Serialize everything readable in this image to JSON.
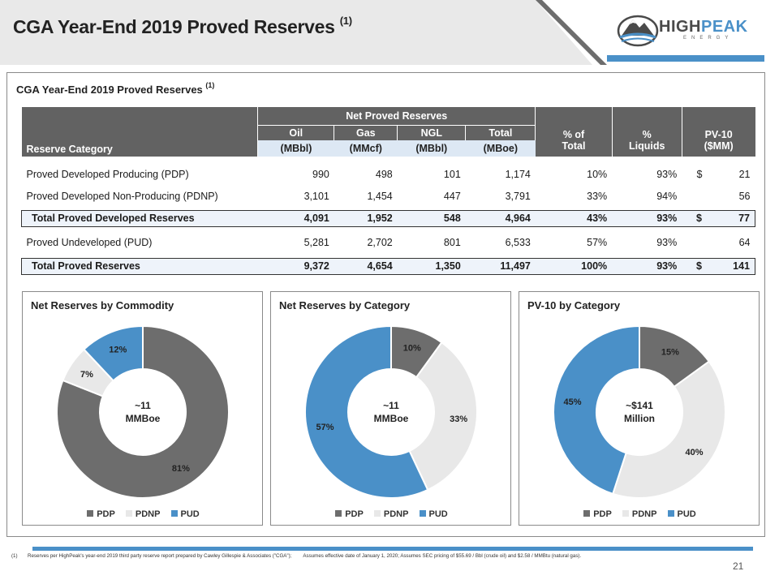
{
  "header": {
    "title": "CGA Year-End 2019 Proved Reserves",
    "title_sup": "(1)",
    "logo_name": "HIGHPEAK",
    "logo_prefix": "HIGH",
    "logo_suffix": "PEAK",
    "logo_sub": "ENERGY",
    "colors": {
      "band": "#e9e9e9",
      "accent": "#4a90c8",
      "dark_grey": "#626262"
    }
  },
  "section": {
    "title": "CGA Year-End 2019 Proved Reserves",
    "title_sup": "(1)"
  },
  "table": {
    "group_header": "Net Proved Reserves",
    "reserve_category": "Reserve Category",
    "cols": [
      {
        "top": "Oil",
        "bottom": "(MBbl)"
      },
      {
        "top": "Gas",
        "bottom": "(MMcf)"
      },
      {
        "top": "NGL",
        "bottom": "(MBbl)"
      },
      {
        "top": "Total",
        "bottom": "(MBoe)"
      },
      {
        "top": "% of",
        "bottom": "Total"
      },
      {
        "top": "%",
        "bottom": "Liquids"
      },
      {
        "top": "PV-10",
        "bottom": "($MM)"
      }
    ],
    "rows": [
      {
        "label": "Proved Developed Producing (PDP)",
        "oil": "990",
        "gas": "498",
        "ngl": "101",
        "total": "1,174",
        "pct_total": "10%",
        "pct_liquids": "93%",
        "pv_cur": "$",
        "pv10": "21"
      },
      {
        "label": "Proved Developed Non-Producing (PDNP)",
        "oil": "3,101",
        "gas": "1,454",
        "ngl": "447",
        "total": "3,791",
        "pct_total": "33%",
        "pct_liquids": "94%",
        "pv_cur": "",
        "pv10": "56"
      },
      {
        "label": "Total Proved Developed Reserves",
        "oil": "4,091",
        "gas": "1,952",
        "ngl": "548",
        "total": "4,964",
        "pct_total": "43%",
        "pct_liquids": "93%",
        "pv_cur": "$",
        "pv10": "77"
      },
      {
        "label": "Proved Undeveloped (PUD)",
        "oil": "5,281",
        "gas": "2,702",
        "ngl": "801",
        "total": "6,533",
        "pct_total": "57%",
        "pct_liquids": "93%",
        "pv_cur": "",
        "pv10": "64"
      },
      {
        "label": "Total Proved Reserves",
        "oil": "9,372",
        "gas": "4,654",
        "ngl": "1,350",
        "total": "11,497",
        "pct_total": "100%",
        "pct_liquids": "93%",
        "pv_cur": "$",
        "pv10": "141"
      }
    ]
  },
  "legend": [
    "PDP",
    "PDNP",
    "PUD"
  ],
  "chart_data": [
    {
      "type": "pie",
      "title": "Net Reserves by Commodity",
      "center_line1": "~11",
      "center_line2": "MMBoe",
      "categories": [
        "PDP",
        "PDNP",
        "PUD"
      ],
      "values": [
        81,
        7,
        12
      ],
      "labels": [
        "81%",
        "7%",
        "12%"
      ],
      "colors": [
        "#6d6d6d",
        "#e8e8e8",
        "#4a90c8"
      ],
      "start_category": "PUD"
    },
    {
      "type": "pie",
      "title": "Net Reserves by Category",
      "center_line1": "~11",
      "center_line2": "MMBoe",
      "categories": [
        "PDP",
        "PDNP",
        "PUD"
      ],
      "values": [
        10,
        33,
        57
      ],
      "labels": [
        "10%",
        "33%",
        "57%"
      ],
      "colors": [
        "#6d6d6d",
        "#e8e8e8",
        "#4a90c8"
      ]
    },
    {
      "type": "pie",
      "title": "PV-10 by Category",
      "center_line1": "~$141",
      "center_line2": "Million",
      "categories": [
        "PDP",
        "PDNP",
        "PUD"
      ],
      "values": [
        15,
        40,
        45
      ],
      "labels": [
        "15%",
        "40%",
        "45%"
      ],
      "colors": [
        "#6d6d6d",
        "#e8e8e8",
        "#4a90c8"
      ]
    }
  ],
  "footnote": {
    "num": "(1)",
    "text1": "Reserves per HighPeak's year-end 2019 third party reserve report prepared by Cawley Gillespie & Associates (\"CGA\");",
    "text2": "Assumes effective date of January 1, 2020; Assumes SEC pricing of $55.69 / Bbl (crude oil) and $2.58 / MMBtu (natural gas)."
  },
  "page_number": "21"
}
